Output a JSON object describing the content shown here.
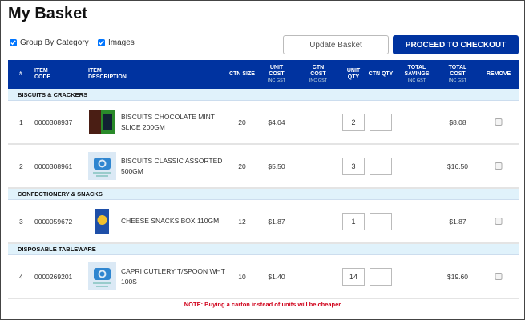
{
  "page": {
    "title": "My Basket"
  },
  "options": {
    "group_by_category": {
      "label": "Group By Category",
      "checked": true
    },
    "images": {
      "label": "Images",
      "checked": true
    }
  },
  "buttons": {
    "update": "Update Basket",
    "checkout": "PROCEED TO CHECKOUT"
  },
  "colors": {
    "brand": "#0033a0",
    "category_bg": "#e0f2fb",
    "note": "#d0021b"
  },
  "columns": {
    "num": "#",
    "code": [
      "ITEM",
      "CODE"
    ],
    "desc": [
      "ITEM",
      "DESCRIPTION"
    ],
    "ctn_size": "CTN SIZE",
    "unit_cost": [
      "UNIT",
      "COST",
      "INC GST"
    ],
    "ctn_cost": [
      "CTN",
      "COST",
      "INC GST"
    ],
    "unit_qty": [
      "UNIT",
      "QTY"
    ],
    "ctn_qty": "CTN QTY",
    "savings": [
      "TOTAL",
      "SAVINGS",
      "INC GST"
    ],
    "total": [
      "TOTAL",
      "COST",
      "INC GST"
    ],
    "remove": "REMOVE"
  },
  "categories": [
    "BISCUITS & CRACKERS",
    "CONFECTIONERY & SNACKS",
    "DISPOSABLE TABLEWARE"
  ],
  "items": [
    {
      "num": "1",
      "code": "0000308937",
      "desc": "BISCUITS CHOCOLATE MINT SLICE 200GM",
      "ctn_size": "20",
      "unit_cost": "$4.04",
      "unit_qty": "2",
      "ctn_qty": "",
      "total": "$8.08",
      "image": "product-photo-mint-slice"
    },
    {
      "num": "2",
      "code": "0000308961",
      "desc": "BISCUITS CLASSIC ASSORTED 500GM",
      "ctn_size": "20",
      "unit_cost": "$5.50",
      "unit_qty": "3",
      "ctn_qty": "",
      "total": "$16.50",
      "image": "image-coming-soon",
      "placeholder": "Image coming soon..."
    },
    {
      "num": "3",
      "code": "0000059672",
      "desc": "CHEESE SNACKS BOX 110GM",
      "ctn_size": "12",
      "unit_cost": "$1.87",
      "unit_qty": "1",
      "ctn_qty": "",
      "total": "$1.87",
      "image": "product-photo-cheese-snacks"
    },
    {
      "num": "4",
      "code": "0000269201",
      "desc": "CAPRI CUTLERY T/SPOON WHT 100S",
      "ctn_size": "10",
      "unit_cost": "$1.40",
      "unit_qty": "14",
      "ctn_qty": "",
      "total": "$19.60",
      "image": "image-coming-soon",
      "placeholder": "Image coming soon..."
    }
  ],
  "note": "NOTE: Buying a carton instead of units will be cheaper"
}
